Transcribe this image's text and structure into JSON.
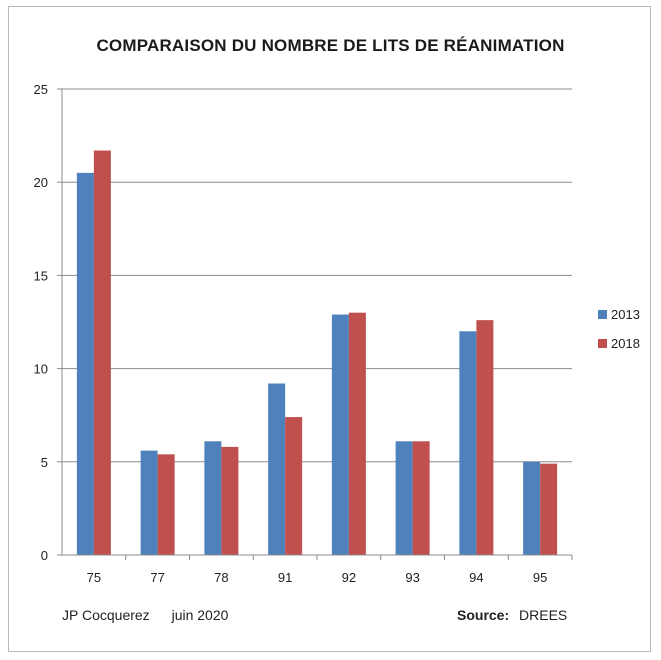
{
  "chart_data": {
    "type": "bar",
    "title": "COMPARAISON DU NOMBRE DE LITS DE RÉANIMATION",
    "xlabel": "",
    "ylabel": "",
    "categories": [
      "75",
      "77",
      "78",
      "91",
      "92",
      "93",
      "94",
      "95"
    ],
    "series": [
      {
        "name": "2013",
        "color": "#4f81bd",
        "values": [
          20.5,
          5.6,
          6.1,
          9.2,
          12.9,
          6.1,
          12.0,
          5.0
        ]
      },
      {
        "name": "2018",
        "color": "#c0504d",
        "values": [
          21.7,
          5.4,
          5.8,
          7.4,
          13.0,
          6.1,
          12.6,
          4.9
        ]
      }
    ],
    "ylim": [
      0,
      25
    ],
    "yticks": [
      0,
      5,
      10,
      15,
      20,
      25
    ],
    "grid": true,
    "legend_position": "right"
  },
  "footer": {
    "author": "JP Cocquerez",
    "date": "juin  2020",
    "source_label": "Source:",
    "source_value": "DREES"
  }
}
